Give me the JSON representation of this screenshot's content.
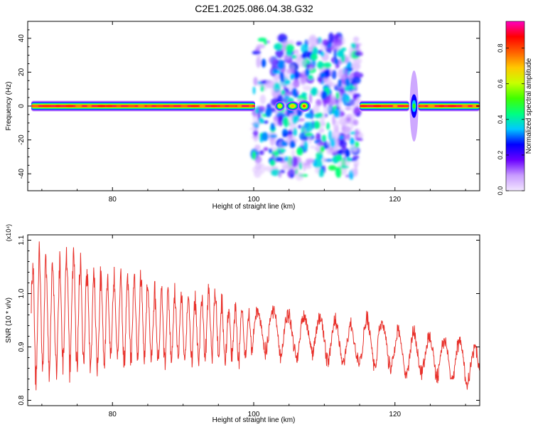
{
  "title": "C2E1.2025.086.04.38.G32",
  "chart_data": [
    {
      "type": "heatmap",
      "title": "C2E1.2025.086.04.38.G32",
      "xlabel": "Height of straight line (km)",
      "ylabel": "Frequency (Hz)",
      "xlim": [
        68,
        132
      ],
      "ylim": [
        -50,
        50
      ],
      "x_ticks": [
        80,
        100,
        120
      ],
      "y_ticks": [
        -40,
        -20,
        0,
        20,
        40
      ],
      "colorbar": {
        "label": "Normalized spectral amplitude",
        "range": [
          0,
          0.95
        ],
        "ticks": [
          "0.0",
          "0.2",
          "0.4",
          "0.6",
          "0.8"
        ],
        "colormap": [
          "#f2e6ff",
          "#c89bff",
          "#6a00ff",
          "#0000ff",
          "#00c8ff",
          "#00ff80",
          "#40ff00",
          "#c8ff00",
          "#ffc800",
          "#ff6000",
          "#ff0000",
          "#ff00c0"
        ]
      },
      "regions": [
        {
          "x": [
            68.5,
            100.2
          ],
          "freq_halfwidth_hz": 2,
          "peak_amplitude": 0.93,
          "kind": "narrow carrier"
        },
        {
          "x": [
            100,
            115
          ],
          "freq_spread_hz": [
            -40,
            40
          ],
          "peak_amplitude": 0.45,
          "kind": "scattered clumps"
        },
        {
          "x": [
            103.2,
            104.2
          ],
          "freq_halfwidth_hz": 1.5,
          "peak_amplitude": 0.6,
          "kind": "blob"
        },
        {
          "x": [
            104.8,
            106.2
          ],
          "freq_halfwidth_hz": 1.5,
          "peak_amplitude": 0.7,
          "kind": "blob"
        },
        {
          "x": [
            106.5,
            107.8
          ],
          "freq_halfwidth_hz": 1.8,
          "peak_amplitude": 0.8,
          "kind": "blob"
        },
        {
          "x": [
            115,
            122
          ],
          "freq_halfwidth_hz": 2,
          "peak_amplitude": 0.93,
          "kind": "narrow carrier"
        },
        {
          "x": [
            122.2,
            123.2
          ],
          "freq_halfwidth_hz": 7,
          "peak_amplitude": 0.35,
          "kind": "gap spread"
        },
        {
          "x": [
            123.3,
            132
          ],
          "freq_halfwidth_hz": 2,
          "peak_amplitude": 0.93,
          "kind": "narrow carrier"
        }
      ]
    },
    {
      "type": "line",
      "xlabel": "Height of straight line (km)",
      "ylabel": "SNR (10 * v/v)",
      "y_multiplier": "(x10⁴)",
      "xlim": [
        68,
        132
      ],
      "ylim": [
        0.79,
        1.11
      ],
      "x_ticks": [
        80,
        100,
        120
      ],
      "y_ticks": [
        0.8,
        0.9,
        1.0,
        1.1
      ],
      "line_color": "#e8302a",
      "series": [
        {
          "x": [
            68.5,
            70,
            72,
            74,
            76,
            78,
            80,
            82,
            84,
            86,
            88,
            90,
            92,
            94,
            96,
            98,
            100,
            102,
            104,
            106,
            108,
            110,
            112,
            114,
            116,
            118,
            120,
            122,
            124,
            126,
            128,
            130,
            132
          ],
          "y": [
            0.93,
            0.97,
            0.94,
            0.99,
            0.95,
            0.94,
            0.96,
            0.94,
            0.96,
            0.93,
            0.94,
            0.93,
            0.93,
            0.95,
            0.92,
            0.93,
            0.93,
            0.94,
            0.94,
            0.92,
            0.93,
            0.92,
            0.91,
            0.9,
            0.91,
            0.93,
            0.89,
            0.89,
            0.89,
            0.89,
            0.88,
            0.88,
            0.86
          ],
          "envelope_high": [
            1.08,
            1.1,
            1.07,
            1.11,
            1.07,
            1.06,
            1.05,
            1.06,
            1.05,
            1.03,
            1.02,
            1.01,
            1.0,
            1.02,
            0.99,
            0.98,
            0.97,
            0.98,
            0.97,
            0.97,
            0.96,
            0.96,
            0.96,
            0.95,
            0.97,
            0.95,
            0.94,
            0.94,
            0.93,
            0.92,
            0.92,
            0.92,
            0.9
          ],
          "envelope_low": [
            0.8,
            0.83,
            0.84,
            0.83,
            0.85,
            0.85,
            0.86,
            0.85,
            0.87,
            0.86,
            0.86,
            0.87,
            0.86,
            0.87,
            0.87,
            0.86,
            0.88,
            0.88,
            0.87,
            0.87,
            0.87,
            0.87,
            0.86,
            0.87,
            0.86,
            0.85,
            0.85,
            0.84,
            0.84,
            0.83,
            0.83,
            0.82,
            0.83
          ]
        }
      ]
    }
  ]
}
